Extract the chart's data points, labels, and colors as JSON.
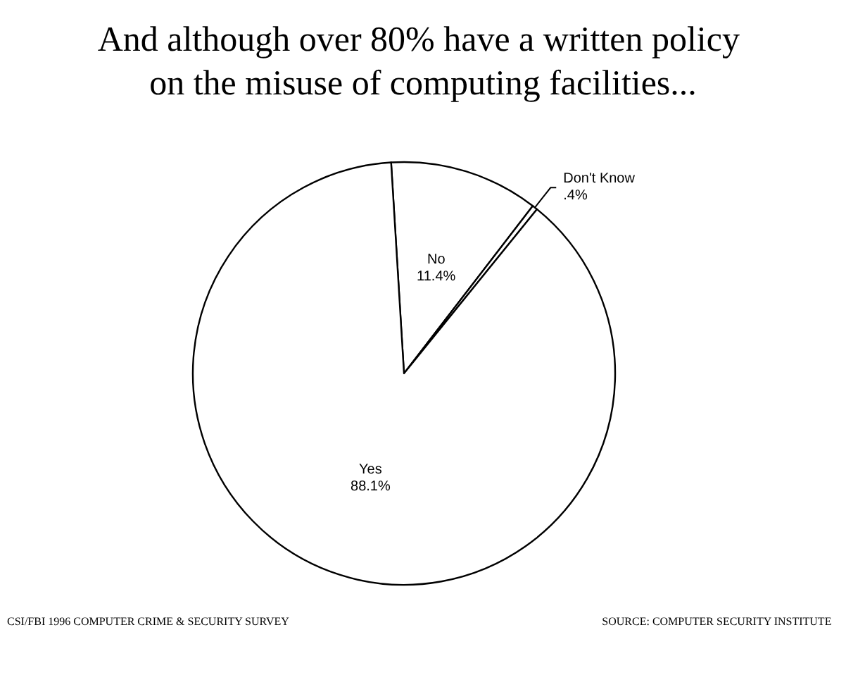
{
  "chart_data": {
    "type": "pie",
    "title": "And although over 80% have a written policy on the misuse of computing facilities...",
    "categories": [
      "No",
      "Don't Know",
      "Yes"
    ],
    "values": [
      11.4,
      0.4,
      88.1
    ],
    "value_labels": [
      "11.4%",
      ".4%",
      "88.1%"
    ],
    "colors": [
      "#ffffff",
      "#ffffff",
      "#ffffff"
    ],
    "annotations": [
      "CSI/FBI 1996 COMPUTER CRIME & SECURITY SURVEY",
      "SOURCE: COMPUTER SECURITY INSTITUTE"
    ],
    "legend": false
  }
}
